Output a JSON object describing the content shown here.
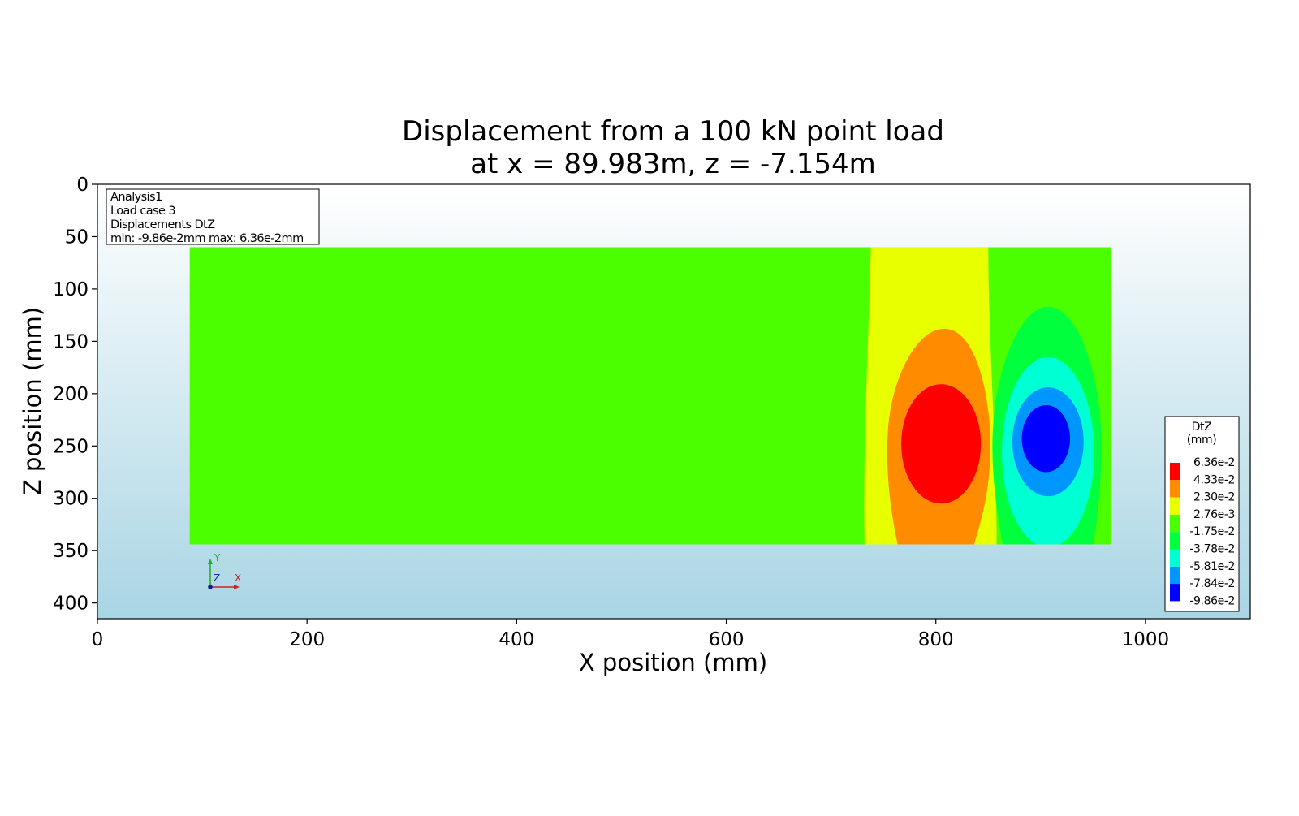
{
  "chart_data": {
    "type": "heatmap",
    "title_line1": "Displacement from a 100 kN point load",
    "title_line2": "at x = 89.983m, z = -7.154m",
    "xlabel": "X position (mm)",
    "ylabel": "Z position (mm)",
    "xlim": [
      0,
      1100
    ],
    "ylim": [
      0,
      415
    ],
    "y_inverted": true,
    "x_ticks": [
      "0",
      "200",
      "400",
      "600",
      "800",
      "1000"
    ],
    "y_ticks": [
      "0",
      "50",
      "100",
      "150",
      "200",
      "250",
      "300",
      "350",
      "400"
    ],
    "info_box": {
      "lines": [
        "Analysis1",
        "Load case 3",
        "Displacements DtZ",
        "min: -9.86e-2mm max:  6.36e-2mm"
      ]
    },
    "triad": {
      "y": "Y",
      "z": "Z",
      "x": "X"
    },
    "legend": {
      "title_line1": "DtZ",
      "title_line2": "(mm)",
      "levels": [
        "6.36e-2",
        "4.33e-2",
        "2.30e-2",
        "2.76e-3",
        "-1.75e-2",
        "-3.78e-2",
        "-5.81e-2",
        "-7.84e-2",
        "-9.86e-2"
      ],
      "colors": [
        "#ff0000",
        "#ff8c00",
        "#e8ff00",
        "#4cff00",
        "#00ff3c",
        "#00ffd2",
        "#0096ff",
        "#0000ff"
      ]
    },
    "domain": {
      "x": [
        88,
        967
      ],
      "z": [
        60,
        344
      ]
    },
    "contours": {
      "positive_peak": {
        "x": 805,
        "z": 248,
        "value": 0.0636
      },
      "negative_peak": {
        "x": 907,
        "z": 243,
        "value": -0.0986
      }
    }
  }
}
